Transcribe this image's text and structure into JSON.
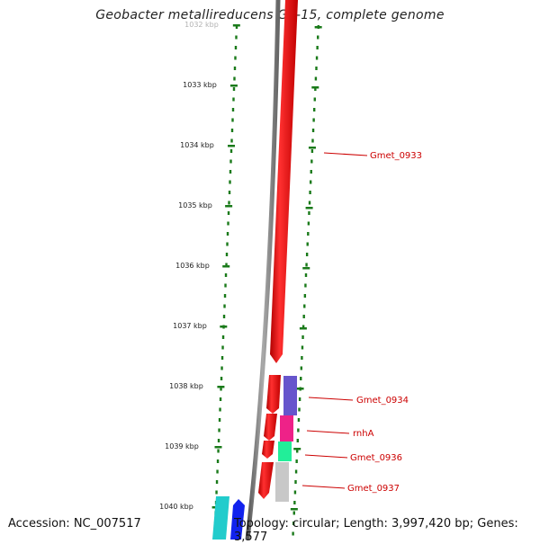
{
  "title": "Geobacter metallireducens GS-15, complete genome",
  "accession_text": "Accession: NC_007517",
  "summary_text": "Topology: circular; Length: 3,997,420 bp; Genes: 3,577",
  "scale_labels": [
    "1032 kbp",
    "1033 kbp",
    "1034 kbp",
    "1035 kbp",
    "1036 kbp",
    "1037 kbp",
    "1038 kbp",
    "1039 kbp",
    "1040 kbp"
  ],
  "gene_labels": [
    "Gmet_0933",
    "Gmet_0934",
    "rnhA",
    "Gmet_0936",
    "Gmet_0937"
  ],
  "colors": {
    "backbone": "#888888",
    "tick": "#1a7a1a",
    "label": "#cc0000",
    "forward_gene": "#ff0000",
    "gene_purple": "#6655cc",
    "gene_magenta": "#ee2288",
    "gene_green": "#22ee99",
    "gene_gray": "#c8c8c8",
    "gene_cyan": "#22cccc",
    "gene_blue": "#1122ee"
  }
}
